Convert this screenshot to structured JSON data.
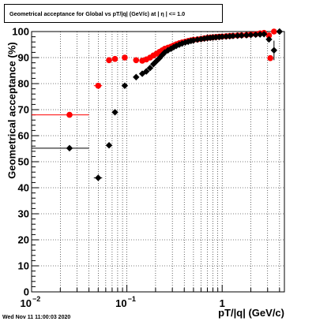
{
  "chart_data": {
    "type": "scatter",
    "title": "Geometrical acceptance for Global vs pT/|q| (GeV/c) at | η | <= 1.0",
    "xlabel": "pT/|q| (GeV/c)",
    "ylabel": "Geometrical acceptance (%)",
    "xscale": "log",
    "xlim": [
      0.01,
      4.5
    ],
    "ylim": [
      0,
      100
    ],
    "grid": true,
    "legend": "none",
    "y_ticks": [
      0,
      10,
      20,
      30,
      40,
      50,
      60,
      70,
      80,
      90,
      100
    ],
    "x_ticks": [
      {
        "value": 0.01,
        "base": "10",
        "exp": "−2"
      },
      {
        "value": 0.1,
        "base": "10",
        "exp": "−1"
      },
      {
        "value": 1,
        "base": "1",
        "exp": ""
      }
    ],
    "series": [
      {
        "color": "#ff0000",
        "points": [
          {
            "x": 0.025,
            "y": 68,
            "xlo": 0.01,
            "xhi": 0.04
          },
          {
            "x": 0.05,
            "y": 79.2,
            "xlo": 0.045,
            "xhi": 0.055
          },
          {
            "x": 0.065,
            "y": 89,
            "xlo": 0.062,
            "xhi": 0.068
          },
          {
            "x": 0.075,
            "y": 89.5,
            "xlo": 0.072,
            "xhi": 0.078
          },
          {
            "x": 0.095,
            "y": 90,
            "xlo": 0.091,
            "xhi": 0.099
          },
          {
            "x": 0.125,
            "y": 89,
            "xlo": 0.121,
            "xhi": 0.129
          },
          {
            "x": 0.145,
            "y": 88.8
          },
          {
            "x": 0.16,
            "y": 89.3
          },
          {
            "x": 0.175,
            "y": 90
          },
          {
            "x": 0.19,
            "y": 90.8
          },
          {
            "x": 0.205,
            "y": 91.5
          },
          {
            "x": 0.22,
            "y": 92.2
          },
          {
            "x": 0.235,
            "y": 92.8
          },
          {
            "x": 0.25,
            "y": 93.4
          },
          {
            "x": 0.27,
            "y": 93.8
          },
          {
            "x": 0.29,
            "y": 94.2
          },
          {
            "x": 0.31,
            "y": 94.7
          },
          {
            "x": 0.33,
            "y": 95.1
          },
          {
            "x": 0.355,
            "y": 95.5
          },
          {
            "x": 0.38,
            "y": 95.8
          },
          {
            "x": 0.41,
            "y": 96.1
          },
          {
            "x": 0.44,
            "y": 96.4
          },
          {
            "x": 0.47,
            "y": 96.6
          },
          {
            "x": 0.5,
            "y": 96.8
          },
          {
            "x": 0.55,
            "y": 97
          },
          {
            "x": 0.6,
            "y": 97.2
          },
          {
            "x": 0.65,
            "y": 97.4
          },
          {
            "x": 0.7,
            "y": 97.6
          },
          {
            "x": 0.75,
            "y": 97.7
          },
          {
            "x": 0.8,
            "y": 97.8
          },
          {
            "x": 0.86,
            "y": 97.9
          },
          {
            "x": 0.93,
            "y": 98
          },
          {
            "x": 1.0,
            "y": 98.1
          },
          {
            "x": 1.1,
            "y": 98.2
          },
          {
            "x": 1.2,
            "y": 98.3
          },
          {
            "x": 1.3,
            "y": 98.4
          },
          {
            "x": 1.45,
            "y": 98.5
          },
          {
            "x": 1.6,
            "y": 98.6
          },
          {
            "x": 1.8,
            "y": 98.7
          },
          {
            "x": 2.0,
            "y": 98.9
          },
          {
            "x": 2.25,
            "y": 99
          },
          {
            "x": 2.5,
            "y": 99.3
          },
          {
            "x": 2.75,
            "y": 99.5
          },
          {
            "x": 3.1,
            "y": 98.5
          },
          {
            "x": 3.5,
            "y": 100
          },
          {
            "x": 3.2,
            "y": 89.8
          }
        ]
      },
      {
        "color": "#000000",
        "points": [
          {
            "x": 0.025,
            "y": 55.2,
            "xlo": 0.01,
            "xhi": 0.04
          },
          {
            "x": 0.05,
            "y": 43.8,
            "xlo": 0.045,
            "xhi": 0.055
          },
          {
            "x": 0.065,
            "y": 56.3,
            "xlo": 0.062,
            "xhi": 0.068
          },
          {
            "x": 0.075,
            "y": 69,
            "xlo": 0.072,
            "xhi": 0.078
          },
          {
            "x": 0.095,
            "y": 79.2,
            "xlo": 0.091,
            "xhi": 0.099
          },
          {
            "x": 0.125,
            "y": 82.5
          },
          {
            "x": 0.145,
            "y": 83.8
          },
          {
            "x": 0.16,
            "y": 84.7
          },
          {
            "x": 0.175,
            "y": 86
          },
          {
            "x": 0.19,
            "y": 87.5
          },
          {
            "x": 0.205,
            "y": 88.7
          },
          {
            "x": 0.22,
            "y": 89.8
          },
          {
            "x": 0.235,
            "y": 91
          },
          {
            "x": 0.25,
            "y": 92
          },
          {
            "x": 0.27,
            "y": 92.8
          },
          {
            "x": 0.29,
            "y": 93.4
          },
          {
            "x": 0.31,
            "y": 94
          },
          {
            "x": 0.33,
            "y": 94.5
          },
          {
            "x": 0.355,
            "y": 95
          },
          {
            "x": 0.38,
            "y": 95.4
          },
          {
            "x": 0.41,
            "y": 95.8
          },
          {
            "x": 0.44,
            "y": 96.1
          },
          {
            "x": 0.47,
            "y": 96.4
          },
          {
            "x": 0.5,
            "y": 96.6
          },
          {
            "x": 0.55,
            "y": 96.9
          },
          {
            "x": 0.6,
            "y": 97.1
          },
          {
            "x": 0.65,
            "y": 97.3
          },
          {
            "x": 0.7,
            "y": 97.5
          },
          {
            "x": 0.75,
            "y": 97.6
          },
          {
            "x": 0.8,
            "y": 97.7
          },
          {
            "x": 0.86,
            "y": 97.8
          },
          {
            "x": 0.93,
            "y": 97.9
          },
          {
            "x": 1.0,
            "y": 98
          },
          {
            "x": 1.1,
            "y": 98.1
          },
          {
            "x": 1.2,
            "y": 98.2
          },
          {
            "x": 1.3,
            "y": 98.3
          },
          {
            "x": 1.45,
            "y": 98.4
          },
          {
            "x": 1.6,
            "y": 98.5
          },
          {
            "x": 1.8,
            "y": 98.6
          },
          {
            "x": 2.0,
            "y": 98.7
          },
          {
            "x": 2.25,
            "y": 98.8
          },
          {
            "x": 2.5,
            "y": 98.9
          },
          {
            "x": 2.75,
            "y": 99
          },
          {
            "x": 3.1,
            "y": 97
          },
          {
            "x": 3.5,
            "y": 92.8,
            "ylo": 89,
            "yhi": 96.5
          },
          {
            "x": 4.0,
            "y": 100
          }
        ]
      }
    ]
  },
  "footer": {
    "timestamp": "Wed Nov 11 11:00:03 2020"
  }
}
